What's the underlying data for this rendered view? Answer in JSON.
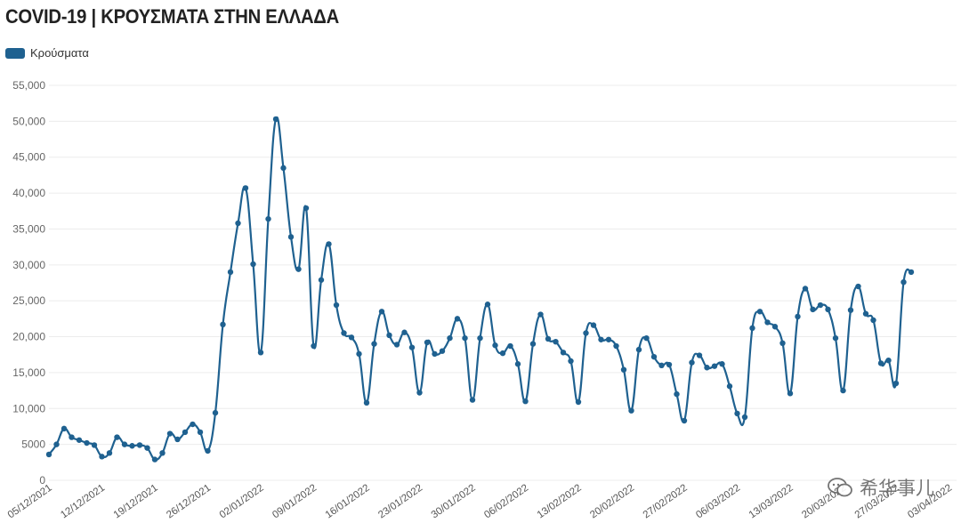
{
  "title": "COVID-19 | ΚΡΟΥΣΜΑΤΑ ΣΤΗΝ ΕΛΛΑΔΑ",
  "watermark": "希华事儿",
  "colors": {
    "series": "#1f6190",
    "grid": "#ececec"
  },
  "chart_data": {
    "type": "line",
    "title": "COVID-19 | ΚΡΟΥΣΜΑΤΑ ΣΤΗΝ ΕΛΛΑΔΑ",
    "xlabel": "",
    "ylabel": "",
    "legend": "top-left",
    "grid": true,
    "ylim": [
      0,
      55000
    ],
    "y_ticks": [
      "0",
      "5000",
      "10,000",
      "15,000",
      "20,000",
      "25,000",
      "30,000",
      "35,000",
      "40,000",
      "45,000",
      "50,000",
      "55,000"
    ],
    "y_tick_values": [
      0,
      5000,
      10000,
      15000,
      20000,
      25000,
      30000,
      35000,
      40000,
      45000,
      50000,
      55000
    ],
    "x_start": "2021-12-05",
    "x_ticks": [
      "05/12/2021",
      "12/12/2021",
      "19/12/2021",
      "26/12/2021",
      "02/01/2022",
      "09/01/2022",
      "16/01/2022",
      "23/01/2022",
      "30/01/2022",
      "06/02/2022",
      "13/02/2022",
      "20/02/2022",
      "27/02/2022",
      "06/03/2022",
      "13/03/2022",
      "20/03/2022",
      "27/03/2022",
      "03/04/2022"
    ],
    "series": [
      {
        "name": "Κρούσματα",
        "values": [
          3600,
          5000,
          7200,
          6000,
          5600,
          5200,
          4900,
          3300,
          3800,
          6000,
          5000,
          4800,
          4900,
          4500,
          2900,
          3800,
          6500,
          5700,
          6700,
          7800,
          6700,
          4100,
          9400,
          21700,
          29000,
          35800,
          40700,
          30100,
          17800,
          36400,
          50300,
          43500,
          33900,
          29400,
          37900,
          18700,
          27900,
          32900,
          24400,
          20500,
          19900,
          17600,
          10800,
          19000,
          23500,
          20200,
          18900,
          20600,
          18500,
          12200,
          19200,
          17600,
          18000,
          19800,
          22500,
          19800,
          11200,
          19800,
          24500,
          18800,
          17700,
          18700,
          16200,
          11000,
          19000,
          23100,
          19700,
          19300,
          17800,
          16600,
          10900,
          20500,
          21600,
          19600,
          19600,
          18700,
          15400,
          9700,
          18200,
          19800,
          17200,
          16000,
          16100,
          12000,
          8300,
          16400,
          17400,
          15700,
          15900,
          16200,
          13100,
          9300,
          8800,
          21200,
          23500,
          22000,
          21400,
          19100,
          12100,
          22800,
          26700,
          23800,
          24400,
          23800,
          19800,
          12500,
          23700,
          27000,
          23200,
          22300,
          16300,
          16700,
          13500,
          27600,
          29000
        ]
      }
    ]
  }
}
